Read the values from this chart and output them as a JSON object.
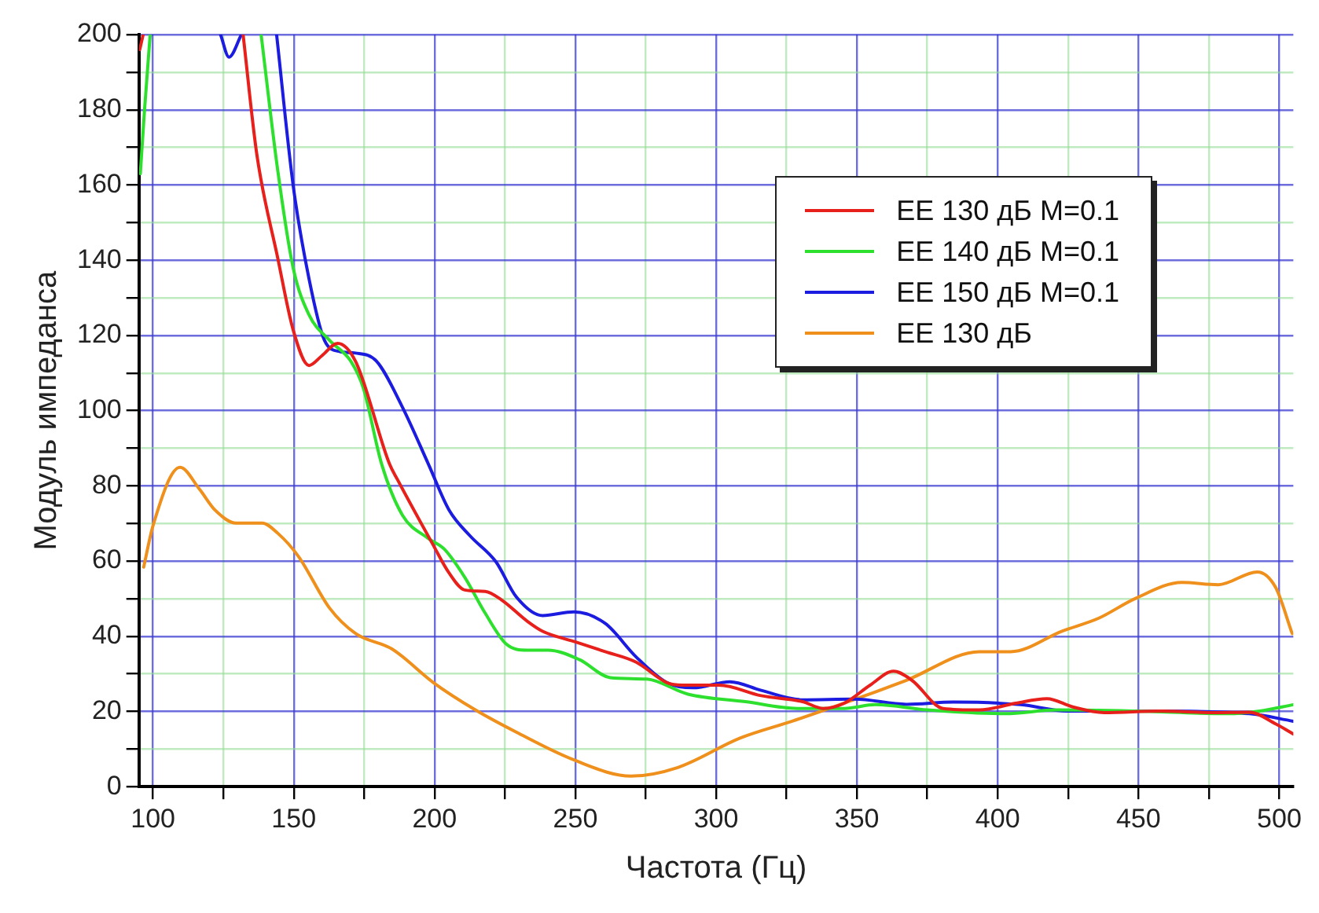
{
  "chart_data": {
    "type": "line",
    "xlabel": "Частота (Гц)",
    "ylabel": "Модуль импеданса",
    "xlim": [
      95,
      505
    ],
    "ylim": [
      0,
      200
    ],
    "xticks": [
      100,
      {
        "value": 125,
        "label": null
      },
      150,
      {
        "value": 175,
        "label": null
      },
      200,
      {
        "value": 225,
        "label": null
      },
      250,
      {
        "value": 275,
        "label": null
      },
      300,
      {
        "value": 325,
        "label": null
      },
      350,
      {
        "value": 375,
        "label": null
      },
      400,
      {
        "value": 425,
        "label": null
      },
      450,
      {
        "value": 475,
        "label": null
      },
      500
    ],
    "yticks": [
      0,
      {
        "value": 10,
        "label": null
      },
      20,
      {
        "value": 30,
        "label": null
      },
      40,
      {
        "value": 50,
        "label": null
      },
      60,
      {
        "value": 70,
        "label": null
      },
      80,
      {
        "value": 90,
        "label": null
      },
      100,
      {
        "value": 110,
        "label": null
      },
      120,
      {
        "value": 130,
        "label": null
      },
      140,
      {
        "value": 150,
        "label": null
      },
      160,
      {
        "value": 170,
        "label": null
      },
      180,
      {
        "value": 190,
        "label": null
      },
      200
    ],
    "grid": true,
    "legend": "top right",
    "marker": "none",
    "line_style": "solid",
    "series": [
      {
        "name": "EE 130 дБ M=0.1",
        "color": "#e8201c",
        "x": [
          95.3,
          96.5,
          110,
          132,
          136.9,
          144.3,
          149.8,
          155.4,
          160,
          165.6,
          172,
          184,
          186.8,
          199.7,
          205,
          210.7,
          218,
          223.7,
          232.9,
          238.4,
          249.5,
          260.6,
          271.6,
          282.7,
          288,
          301,
          316,
          330.7,
          338,
          345.5,
          354.7,
          363,
          369.5,
          380.6,
          393.5,
          406.4,
          417.5,
          426.7,
          437.8,
          458,
          476.5,
          489.4,
          498.7,
          505
        ],
        "values": [
          196,
          200,
          null,
          200,
          168,
          140.6,
          121.4,
          112,
          114.6,
          117.9,
          113,
          85.8,
          81.7,
          64,
          57,
          52.3,
          51.9,
          49.7,
          44,
          41.3,
          38.6,
          35.9,
          33.1,
          27.6,
          27,
          27,
          24.2,
          22.6,
          20.8,
          22.2,
          27,
          30.7,
          28.3,
          20.8,
          20.4,
          22.2,
          23.4,
          21.2,
          19.7,
          20.1,
          19.7,
          19.8,
          16.7,
          14
        ]
      },
      {
        "name": "EE 140 дБ M=0.1",
        "color": "#2ee02e",
        "x": [
          95.5,
          97,
          99,
          120,
          138.4,
          144.3,
          149.8,
          155.4,
          162.7,
          170.2,
          174.7,
          181.2,
          188.6,
          197.8,
          203.4,
          210.7,
          218,
          225.5,
          232.9,
          240.3,
          251.4,
          262.4,
          275.4,
          290,
          310.4,
          328.8,
          345.5,
          356.6,
          375,
          402.7,
          421,
          448.8,
          482,
          493,
          505
        ],
        "values": [
          163,
          180,
          200,
          null,
          200,
          163.9,
          137.9,
          125.5,
          118.7,
          113.2,
          106,
          85.8,
          72.2,
          66,
          63.2,
          55.7,
          46.1,
          37.9,
          36.3,
          36.3,
          33.8,
          29,
          28.6,
          24.6,
          22.6,
          20.8,
          20.8,
          21.8,
          20.4,
          19.4,
          20.4,
          20.1,
          19.4,
          20.1,
          21.8
        ]
      },
      {
        "name": "EE 150 дБ M=0.1",
        "color": "#1c1ce0",
        "x": [
          124,
          127,
          131.4,
          137,
          143.9,
          149.8,
          155.4,
          160.9,
          166.4,
          172,
          179.3,
          188.6,
          197.8,
          205.2,
          212.6,
          221.8,
          229,
          238.4,
          249.5,
          260.6,
          271.6,
          282.7,
          291.9,
          304.9,
          316,
          330.7,
          349.2,
          367.6,
          384.3,
          408.2,
          424.8,
          458,
          489.4,
          505
        ],
        "values": [
          200,
          194,
          200,
          null,
          200,
          159.8,
          135.1,
          118.7,
          115.7,
          115.3,
          113.2,
          100.9,
          85.8,
          73.5,
          66.7,
          59.8,
          50.5,
          45.5,
          46.5,
          43.4,
          34.5,
          27.6,
          26.3,
          27.9,
          25.6,
          23.1,
          23.3,
          21.9,
          22.5,
          21.8,
          20.1,
          20.1,
          19.4,
          17.4
        ]
      },
      {
        "name": "EE 130 дБ",
        "color": "#f0901c",
        "x": [
          96.7,
          100,
          109.6,
          116.6,
          122.1,
          129.5,
          138.8,
          144.3,
          151.7,
          162.7,
          172,
          184.9,
          199.7,
          214.5,
          229,
          249.5,
          269.8,
          286.4,
          308.5,
          327,
          345.5,
          367.6,
          393.5,
          404.6,
          423,
          435.9,
          448.8,
          465.4,
          478.3,
          492.2,
          498.7,
          504.6
        ],
        "values": [
          58.4,
          69.4,
          84.9,
          79,
          73.5,
          70.1,
          70.1,
          67.4,
          61.2,
          47.5,
          40.7,
          36.6,
          27.6,
          20.4,
          14.5,
          7.1,
          2.8,
          5.1,
          12.9,
          17.4,
          22.2,
          28.3,
          35.9,
          35.9,
          41.4,
          44.8,
          50,
          54.3,
          53.7,
          57.1,
          53,
          40.7
        ]
      }
    ]
  }
}
